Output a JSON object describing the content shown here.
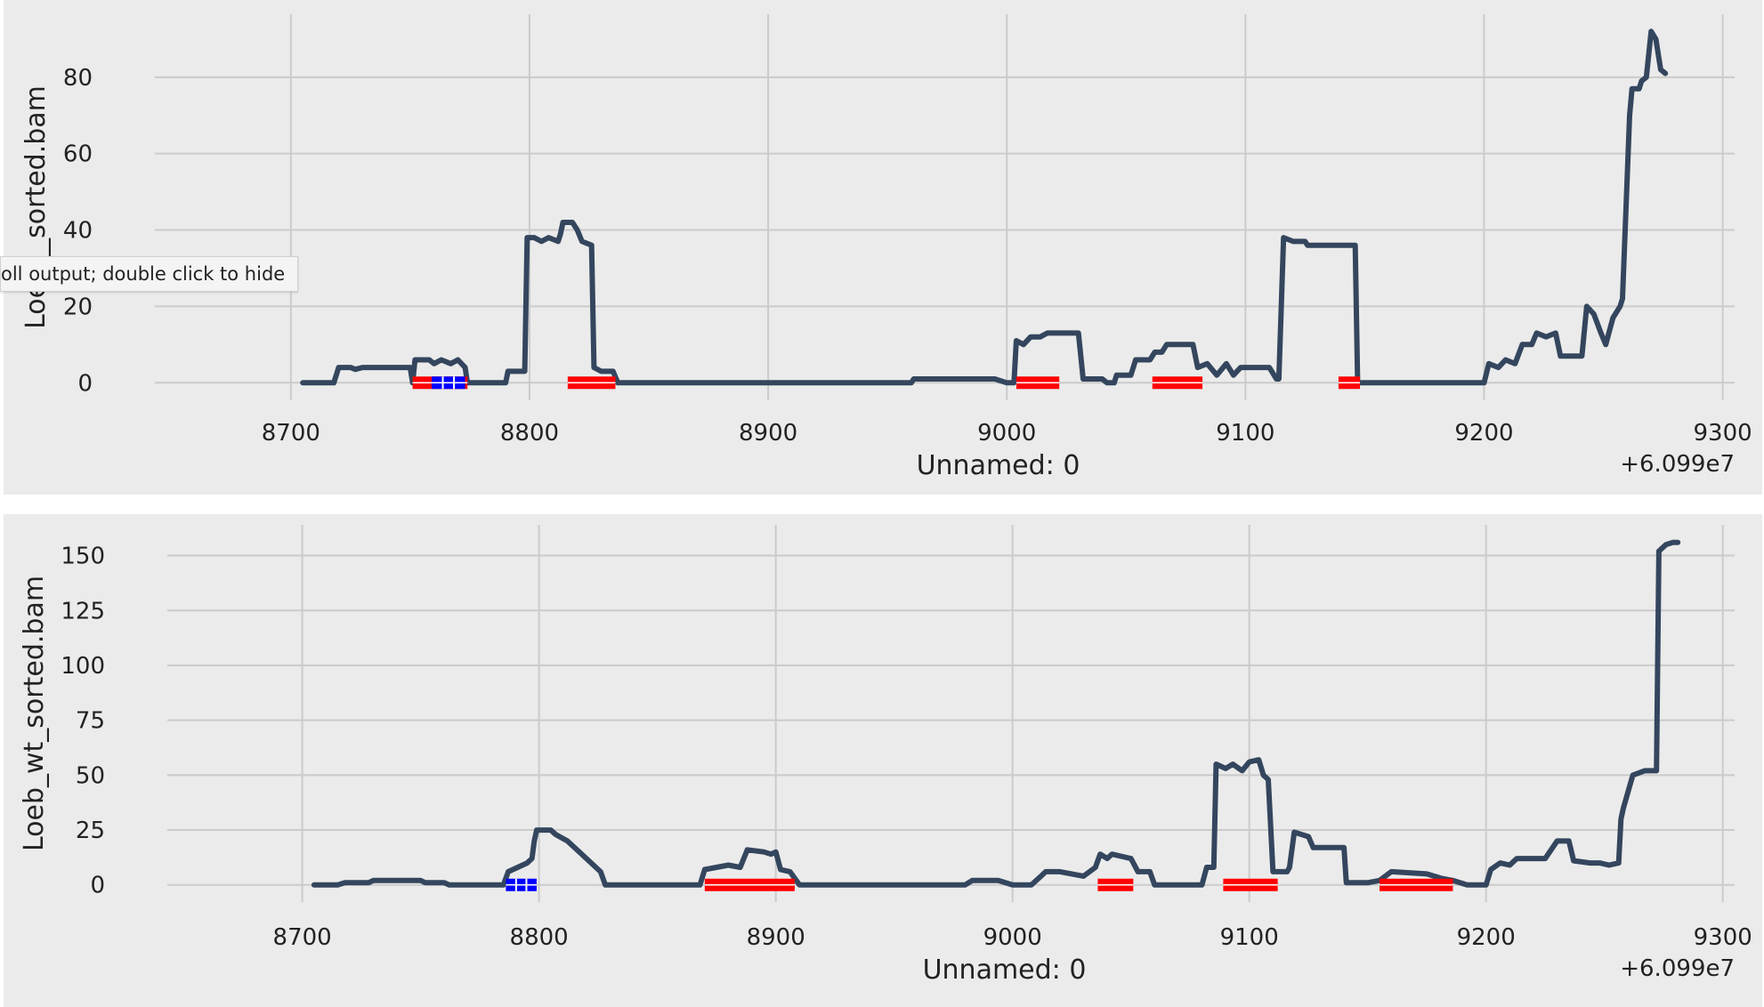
{
  "tooltip": {
    "text": "oll output; double click to hide"
  },
  "colors": {
    "line": "#34465e",
    "grid": "#cbcbcb",
    "background": "#ebebeb",
    "red_region": "#ff0000",
    "blue_region": "#0000ff"
  },
  "chart_data": [
    {
      "type": "line",
      "xlabel": "Unnamed: 0",
      "ylabel": "Loeb_",
      "ylabel_tail": "_sorted.bam",
      "offset_label": "+6.099e7",
      "xlim": [
        8643,
        9305
      ],
      "ylim": [
        -4.6,
        96.5
      ],
      "xticks": [
        8700,
        8800,
        8900,
        9000,
        9100,
        9200,
        9300
      ],
      "yticks": [
        0,
        20,
        40,
        60,
        80
      ],
      "grid": true,
      "series": [
        {
          "points": [
            [
              8705,
              0
            ],
            [
              8718,
              0
            ],
            [
              8720,
              4
            ],
            [
              8725,
              4
            ],
            [
              8727,
              3.5
            ],
            [
              8730,
              4
            ],
            [
              8735,
              4
            ],
            [
              8750,
              4
            ],
            [
              8751,
              0
            ],
            [
              8752,
              6
            ],
            [
              8758,
              6
            ],
            [
              8760,
              5
            ],
            [
              8763,
              6
            ],
            [
              8767,
              5
            ],
            [
              8770,
              6
            ],
            [
              8773,
              4
            ],
            [
              8774,
              0
            ],
            [
              8790,
              0
            ],
            [
              8791,
              3
            ],
            [
              8798,
              3
            ],
            [
              8799,
              38
            ],
            [
              8802,
              38
            ],
            [
              8805,
              37
            ],
            [
              8808,
              38
            ],
            [
              8812,
              37
            ],
            [
              8813,
              39
            ],
            [
              8814,
              42
            ],
            [
              8818,
              42
            ],
            [
              8820,
              40
            ],
            [
              8822,
              37
            ],
            [
              8826,
              36
            ],
            [
              8827,
              4
            ],
            [
              8830,
              3
            ],
            [
              8835,
              3
            ],
            [
              8837,
              0
            ],
            [
              8960,
              0
            ],
            [
              8961,
              1
            ],
            [
              8995,
              1
            ],
            [
              9000,
              0
            ],
            [
              9003,
              0
            ],
            [
              9004,
              11
            ],
            [
              9007,
              10
            ],
            [
              9010,
              12
            ],
            [
              9014,
              12
            ],
            [
              9017,
              13
            ],
            [
              9030,
              13
            ],
            [
              9032,
              1
            ],
            [
              9040,
              1
            ],
            [
              9042,
              0
            ],
            [
              9045,
              0
            ],
            [
              9046,
              2
            ],
            [
              9052,
              2
            ],
            [
              9054,
              6
            ],
            [
              9060,
              6
            ],
            [
              9062,
              8
            ],
            [
              9065,
              8
            ],
            [
              9067,
              10
            ],
            [
              9078,
              10
            ],
            [
              9080,
              4
            ],
            [
              9084,
              5
            ],
            [
              9088,
              2
            ],
            [
              9092,
              5
            ],
            [
              9095,
              2
            ],
            [
              9098,
              4
            ],
            [
              9110,
              4
            ],
            [
              9113,
              1
            ],
            [
              9114,
              1
            ],
            [
              9116,
              38
            ],
            [
              9120,
              37
            ],
            [
              9125,
              37
            ],
            [
              9126,
              36
            ],
            [
              9146,
              36
            ],
            [
              9147,
              0
            ],
            [
              9200,
              0
            ],
            [
              9202,
              5
            ],
            [
              9206,
              4
            ],
            [
              9209,
              6
            ],
            [
              9213,
              5
            ],
            [
              9216,
              10
            ],
            [
              9220,
              10
            ],
            [
              9222,
              13
            ],
            [
              9226,
              12
            ],
            [
              9230,
              13
            ],
            [
              9232,
              7
            ],
            [
              9241,
              7
            ],
            [
              9243,
              20
            ],
            [
              9246,
              18
            ],
            [
              9249,
              13
            ],
            [
              9251,
              10
            ],
            [
              9254,
              17
            ],
            [
              9257,
              20
            ],
            [
              9258,
              22
            ],
            [
              9261,
              70
            ],
            [
              9262,
              77
            ],
            [
              9265,
              77
            ],
            [
              9266,
              79
            ],
            [
              9268,
              80
            ],
            [
              9270,
              92
            ],
            [
              9272,
              90
            ],
            [
              9274,
              82
            ],
            [
              9276,
              81
            ]
          ]
        }
      ],
      "regions": [
        {
          "color": "red",
          "start": 8751,
          "end": 8774
        },
        {
          "color": "blue",
          "start": 8759,
          "end": 8773
        },
        {
          "color": "red",
          "start": 8816,
          "end": 8836
        },
        {
          "color": "red",
          "start": 9004,
          "end": 9022
        },
        {
          "color": "red",
          "start": 9061,
          "end": 9082
        },
        {
          "color": "red",
          "start": 9139,
          "end": 9148
        }
      ]
    },
    {
      "type": "line",
      "xlabel": "Unnamed: 0",
      "ylabel": "Loeb_wt_sorted.bam",
      "ylabel_tail": "",
      "offset_label": "+6.099e7",
      "xlim": [
        8643,
        9305
      ],
      "ylim": [
        -7.8,
        164
      ],
      "xticks": [
        8700,
        8800,
        8900,
        9000,
        9100,
        9200,
        9300
      ],
      "yticks": [
        0,
        25,
        50,
        75,
        100,
        125,
        150
      ],
      "grid": true,
      "series": [
        {
          "points": [
            [
              8705,
              0
            ],
            [
              8715,
              0
            ],
            [
              8718,
              1
            ],
            [
              8728,
              1
            ],
            [
              8730,
              2
            ],
            [
              8750,
              2
            ],
            [
              8752,
              1
            ],
            [
              8760,
              1
            ],
            [
              8762,
              0
            ],
            [
              8785,
              0
            ],
            [
              8787,
              6
            ],
            [
              8791,
              8
            ],
            [
              8795,
              10
            ],
            [
              8797,
              12
            ],
            [
              8798,
              20
            ],
            [
              8799,
              25
            ],
            [
              8805,
              25
            ],
            [
              8807,
              23
            ],
            [
              8812,
              20
            ],
            [
              8817,
              15
            ],
            [
              8822,
              10
            ],
            [
              8826,
              6
            ],
            [
              8828,
              0
            ],
            [
              8868,
              0
            ],
            [
              8870,
              7
            ],
            [
              8875,
              8
            ],
            [
              8880,
              9
            ],
            [
              8885,
              8
            ],
            [
              8888,
              16
            ],
            [
              8895,
              15
            ],
            [
              8898,
              14
            ],
            [
              8900,
              15
            ],
            [
              8902,
              7
            ],
            [
              8906,
              6
            ],
            [
              8910,
              0
            ],
            [
              8980,
              0
            ],
            [
              8983,
              2
            ],
            [
              8994,
              2
            ],
            [
              9000,
              0
            ],
            [
              9008,
              0
            ],
            [
              9012,
              4
            ],
            [
              9014,
              6
            ],
            [
              9020,
              6
            ],
            [
              9030,
              4
            ],
            [
              9035,
              8
            ],
            [
              9037,
              14
            ],
            [
              9040,
              12
            ],
            [
              9042,
              14
            ],
            [
              9050,
              12
            ],
            [
              9053,
              6
            ],
            [
              9058,
              6
            ],
            [
              9060,
              0
            ],
            [
              9080,
              0
            ],
            [
              9082,
              8
            ],
            [
              9085,
              8
            ],
            [
              9086,
              55
            ],
            [
              9090,
              53
            ],
            [
              9093,
              55
            ],
            [
              9097,
              52
            ],
            [
              9100,
              56
            ],
            [
              9104,
              57
            ],
            [
              9106,
              50
            ],
            [
              9108,
              48
            ],
            [
              9110,
              6
            ],
            [
              9116,
              6
            ],
            [
              9117,
              8
            ],
            [
              9119,
              24
            ],
            [
              9125,
              22
            ],
            [
              9127,
              17
            ],
            [
              9140,
              17
            ],
            [
              9141,
              1
            ],
            [
              9150,
              1
            ],
            [
              9155,
              2
            ],
            [
              9160,
              6
            ],
            [
              9175,
              5
            ],
            [
              9181,
              3
            ],
            [
              9186,
              2
            ],
            [
              9192,
              0
            ],
            [
              9200,
              0
            ],
            [
              9202,
              7
            ],
            [
              9206,
              10
            ],
            [
              9210,
              9
            ],
            [
              9213,
              12
            ],
            [
              9225,
              12
            ],
            [
              9230,
              20
            ],
            [
              9235,
              20
            ],
            [
              9237,
              11
            ],
            [
              9244,
              10
            ],
            [
              9248,
              10
            ],
            [
              9252,
              9
            ],
            [
              9256,
              10
            ],
            [
              9257,
              30
            ],
            [
              9258,
              35
            ],
            [
              9262,
              50
            ],
            [
              9267,
              52
            ],
            [
              9272,
              52
            ],
            [
              9273,
              152
            ],
            [
              9276,
              155
            ],
            [
              9279,
              156
            ],
            [
              9281,
              156
            ]
          ]
        }
      ],
      "regions": [
        {
          "color": "blue",
          "start": 8786,
          "end": 8799
        },
        {
          "color": "red",
          "start": 8870,
          "end": 8908
        },
        {
          "color": "red",
          "start": 9036,
          "end": 9051
        },
        {
          "color": "red",
          "start": 9089,
          "end": 9112
        },
        {
          "color": "red",
          "start": 9155,
          "end": 9186
        }
      ]
    }
  ]
}
